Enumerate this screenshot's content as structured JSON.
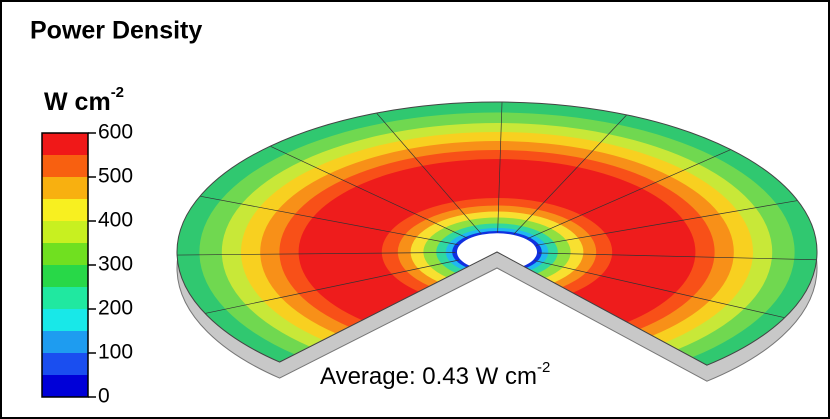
{
  "title": "Power Density",
  "colorbar": {
    "unit": "W cm",
    "unit_exponent": "-2",
    "lim": [
      0,
      600
    ],
    "ticks": [
      0,
      100,
      200,
      300,
      400,
      500,
      600
    ]
  },
  "annotation": {
    "text": "Average: 0.43 W cm",
    "exponent": "-2"
  }
}
